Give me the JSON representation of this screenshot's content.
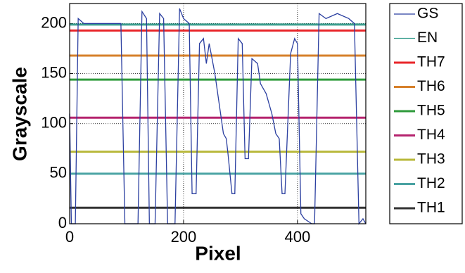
{
  "chart_data": {
    "type": "line",
    "x_label": "Pixel",
    "y_label": "Grayscale",
    "xlim": [
      0,
      520
    ],
    "ylim": [
      0,
      220
    ],
    "xticks": [
      0,
      200,
      400
    ],
    "yticks": [
      0,
      50,
      100,
      150,
      200
    ],
    "grid": true,
    "legend": "outside-right",
    "series": [
      {
        "name": "GS",
        "color": "#2b3fa0",
        "x": [
          0,
          3,
          10,
          15,
          25,
          50,
          90,
          97,
          120,
          127,
          135,
          140,
          150,
          158,
          165,
          172,
          185,
          193,
          200,
          210,
          215,
          222,
          228,
          235,
          240,
          245,
          255,
          260,
          265,
          270,
          275,
          278,
          285,
          290,
          296,
          303,
          308,
          314,
          320,
          330,
          335,
          345,
          355,
          362,
          368,
          373,
          378,
          388,
          395,
          400,
          406,
          412,
          425,
          430,
          438,
          450,
          470,
          490,
          500,
          508,
          515,
          520
        ],
        "values": [
          110,
          0,
          0,
          205,
          200,
          200,
          200,
          0,
          0,
          212,
          205,
          0,
          0,
          210,
          205,
          0,
          0,
          215,
          205,
          200,
          30,
          30,
          180,
          185,
          160,
          180,
          150,
          130,
          110,
          90,
          85,
          70,
          30,
          30,
          185,
          180,
          65,
          65,
          165,
          160,
          140,
          130,
          110,
          90,
          85,
          30,
          30,
          170,
          185,
          180,
          10,
          5,
          0,
          0,
          210,
          205,
          210,
          205,
          200,
          0,
          5,
          0
        ]
      },
      {
        "name": "EN",
        "color": "#3a9e8e",
        "x": [
          0,
          520
        ],
        "values": [
          199,
          199
        ]
      },
      {
        "name": "TH7",
        "color": "#e8262a",
        "x": [
          0,
          520
        ],
        "values": [
          193,
          193
        ]
      },
      {
        "name": "TH6",
        "color": "#d6802a",
        "x": [
          0,
          520
        ],
        "values": [
          168,
          168
        ]
      },
      {
        "name": "TH5",
        "color": "#2e9a3a",
        "x": [
          0,
          520
        ],
        "values": [
          144,
          144
        ]
      },
      {
        "name": "TH4",
        "color": "#b5246e",
        "x": [
          0,
          520
        ],
        "values": [
          106,
          106
        ]
      },
      {
        "name": "TH3",
        "color": "#b8b83a",
        "x": [
          0,
          520
        ],
        "values": [
          72,
          72
        ]
      },
      {
        "name": "TH2",
        "color": "#4aa3a3",
        "x": [
          0,
          520
        ],
        "values": [
          50,
          50
        ]
      },
      {
        "name": "TH1",
        "color": "#333333",
        "x": [
          0,
          520
        ],
        "values": [
          16,
          16
        ]
      }
    ]
  }
}
